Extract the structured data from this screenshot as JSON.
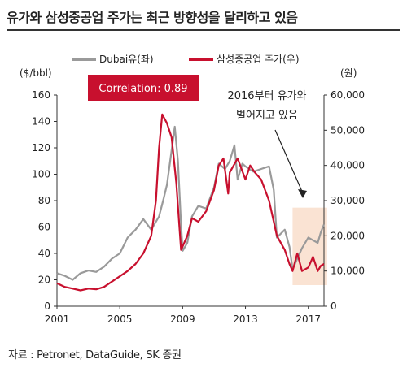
{
  "title": "유가와 삼성중공업 주가는 최근 방향성을 달리하고 있음",
  "source": "자료 : Petronet, DataGuide, SK 증권",
  "chart_data": {
    "type": "line",
    "left_axis_unit": "($/bbl)",
    "right_axis_unit": "(원)",
    "x_ticks": [
      "2001",
      "2005",
      "2009",
      "2013",
      "2017"
    ],
    "y_left": {
      "min": 0,
      "max": 160,
      "ticks": [
        "0",
        "20",
        "40",
        "60",
        "80",
        "100",
        "120",
        "140",
        "160"
      ]
    },
    "y_right": {
      "min": 0,
      "max": 60000,
      "ticks": [
        "0",
        "10,000",
        "20,000",
        "30,000",
        "40,000",
        "50,000",
        "60,000"
      ]
    },
    "correlation_label": "Correlation: 0.89",
    "annotation": [
      "2016부터 유가와",
      "벌어지고 있음"
    ],
    "x_range": [
      2001,
      2018
    ],
    "series": [
      {
        "name": "Dubai유(좌)",
        "axis": "left",
        "color": "#9a9a9a",
        "points": [
          [
            2001,
            25
          ],
          [
            2001.5,
            23
          ],
          [
            2002,
            20
          ],
          [
            2002.5,
            25
          ],
          [
            2003,
            27
          ],
          [
            2003.5,
            26
          ],
          [
            2004,
            30
          ],
          [
            2004.5,
            36
          ],
          [
            2005,
            40
          ],
          [
            2005.5,
            52
          ],
          [
            2006,
            58
          ],
          [
            2006.5,
            66
          ],
          [
            2007,
            58
          ],
          [
            2007.5,
            68
          ],
          [
            2007.8,
            82
          ],
          [
            2008,
            92
          ],
          [
            2008.3,
            118
          ],
          [
            2008.5,
            136
          ],
          [
            2008.7,
            110
          ],
          [
            2008.9,
            62
          ],
          [
            2009,
            42
          ],
          [
            2009.3,
            48
          ],
          [
            2009.6,
            68
          ],
          [
            2010,
            76
          ],
          [
            2010.5,
            74
          ],
          [
            2011,
            90
          ],
          [
            2011.3,
            108
          ],
          [
            2011.7,
            104
          ],
          [
            2012,
            110
          ],
          [
            2012.3,
            122
          ],
          [
            2012.5,
            96
          ],
          [
            2012.8,
            108
          ],
          [
            2013,
            106
          ],
          [
            2013.5,
            102
          ],
          [
            2014,
            104
          ],
          [
            2014.5,
            106
          ],
          [
            2014.8,
            88
          ],
          [
            2015,
            52
          ],
          [
            2015.5,
            58
          ],
          [
            2015.8,
            45
          ],
          [
            2016,
            28
          ],
          [
            2016.3,
            36
          ],
          [
            2016.6,
            44
          ],
          [
            2017,
            52
          ],
          [
            2017.3,
            50
          ],
          [
            2017.6,
            48
          ],
          [
            2017.8,
            56
          ],
          [
            2018,
            62
          ]
        ]
      },
      {
        "name": "삼성중공업 주가(우)",
        "axis": "right",
        "color": "#c8102e",
        "points": [
          [
            2001,
            6500
          ],
          [
            2001.5,
            5500
          ],
          [
            2002,
            5000
          ],
          [
            2002.5,
            4500
          ],
          [
            2003,
            5000
          ],
          [
            2003.5,
            4800
          ],
          [
            2004,
            5500
          ],
          [
            2004.5,
            7000
          ],
          [
            2005,
            8500
          ],
          [
            2005.5,
            10000
          ],
          [
            2006,
            12000
          ],
          [
            2006.5,
            15000
          ],
          [
            2007,
            20000
          ],
          [
            2007.3,
            30000
          ],
          [
            2007.5,
            45000
          ],
          [
            2007.7,
            54500
          ],
          [
            2008,
            52000
          ],
          [
            2008.3,
            48000
          ],
          [
            2008.6,
            35000
          ],
          [
            2008.9,
            16000
          ],
          [
            2009,
            17000
          ],
          [
            2009.3,
            20000
          ],
          [
            2009.6,
            25000
          ],
          [
            2010,
            24000
          ],
          [
            2010.5,
            27000
          ],
          [
            2011,
            33000
          ],
          [
            2011.3,
            40000
          ],
          [
            2011.6,
            42000
          ],
          [
            2011.9,
            32000
          ],
          [
            2012,
            38000
          ],
          [
            2012.5,
            42000
          ],
          [
            2013,
            36000
          ],
          [
            2013.3,
            40000
          ],
          [
            2013.6,
            38000
          ],
          [
            2014,
            36000
          ],
          [
            2014.5,
            30000
          ],
          [
            2014.8,
            24000
          ],
          [
            2015,
            20000
          ],
          [
            2015.5,
            16000
          ],
          [
            2015.8,
            12000
          ],
          [
            2016,
            10000
          ],
          [
            2016.3,
            15000
          ],
          [
            2016.6,
            10000
          ],
          [
            2017,
            11000
          ],
          [
            2017.3,
            14000
          ],
          [
            2017.6,
            10000
          ],
          [
            2017.8,
            11500
          ],
          [
            2018,
            12000
          ]
        ]
      }
    ]
  }
}
